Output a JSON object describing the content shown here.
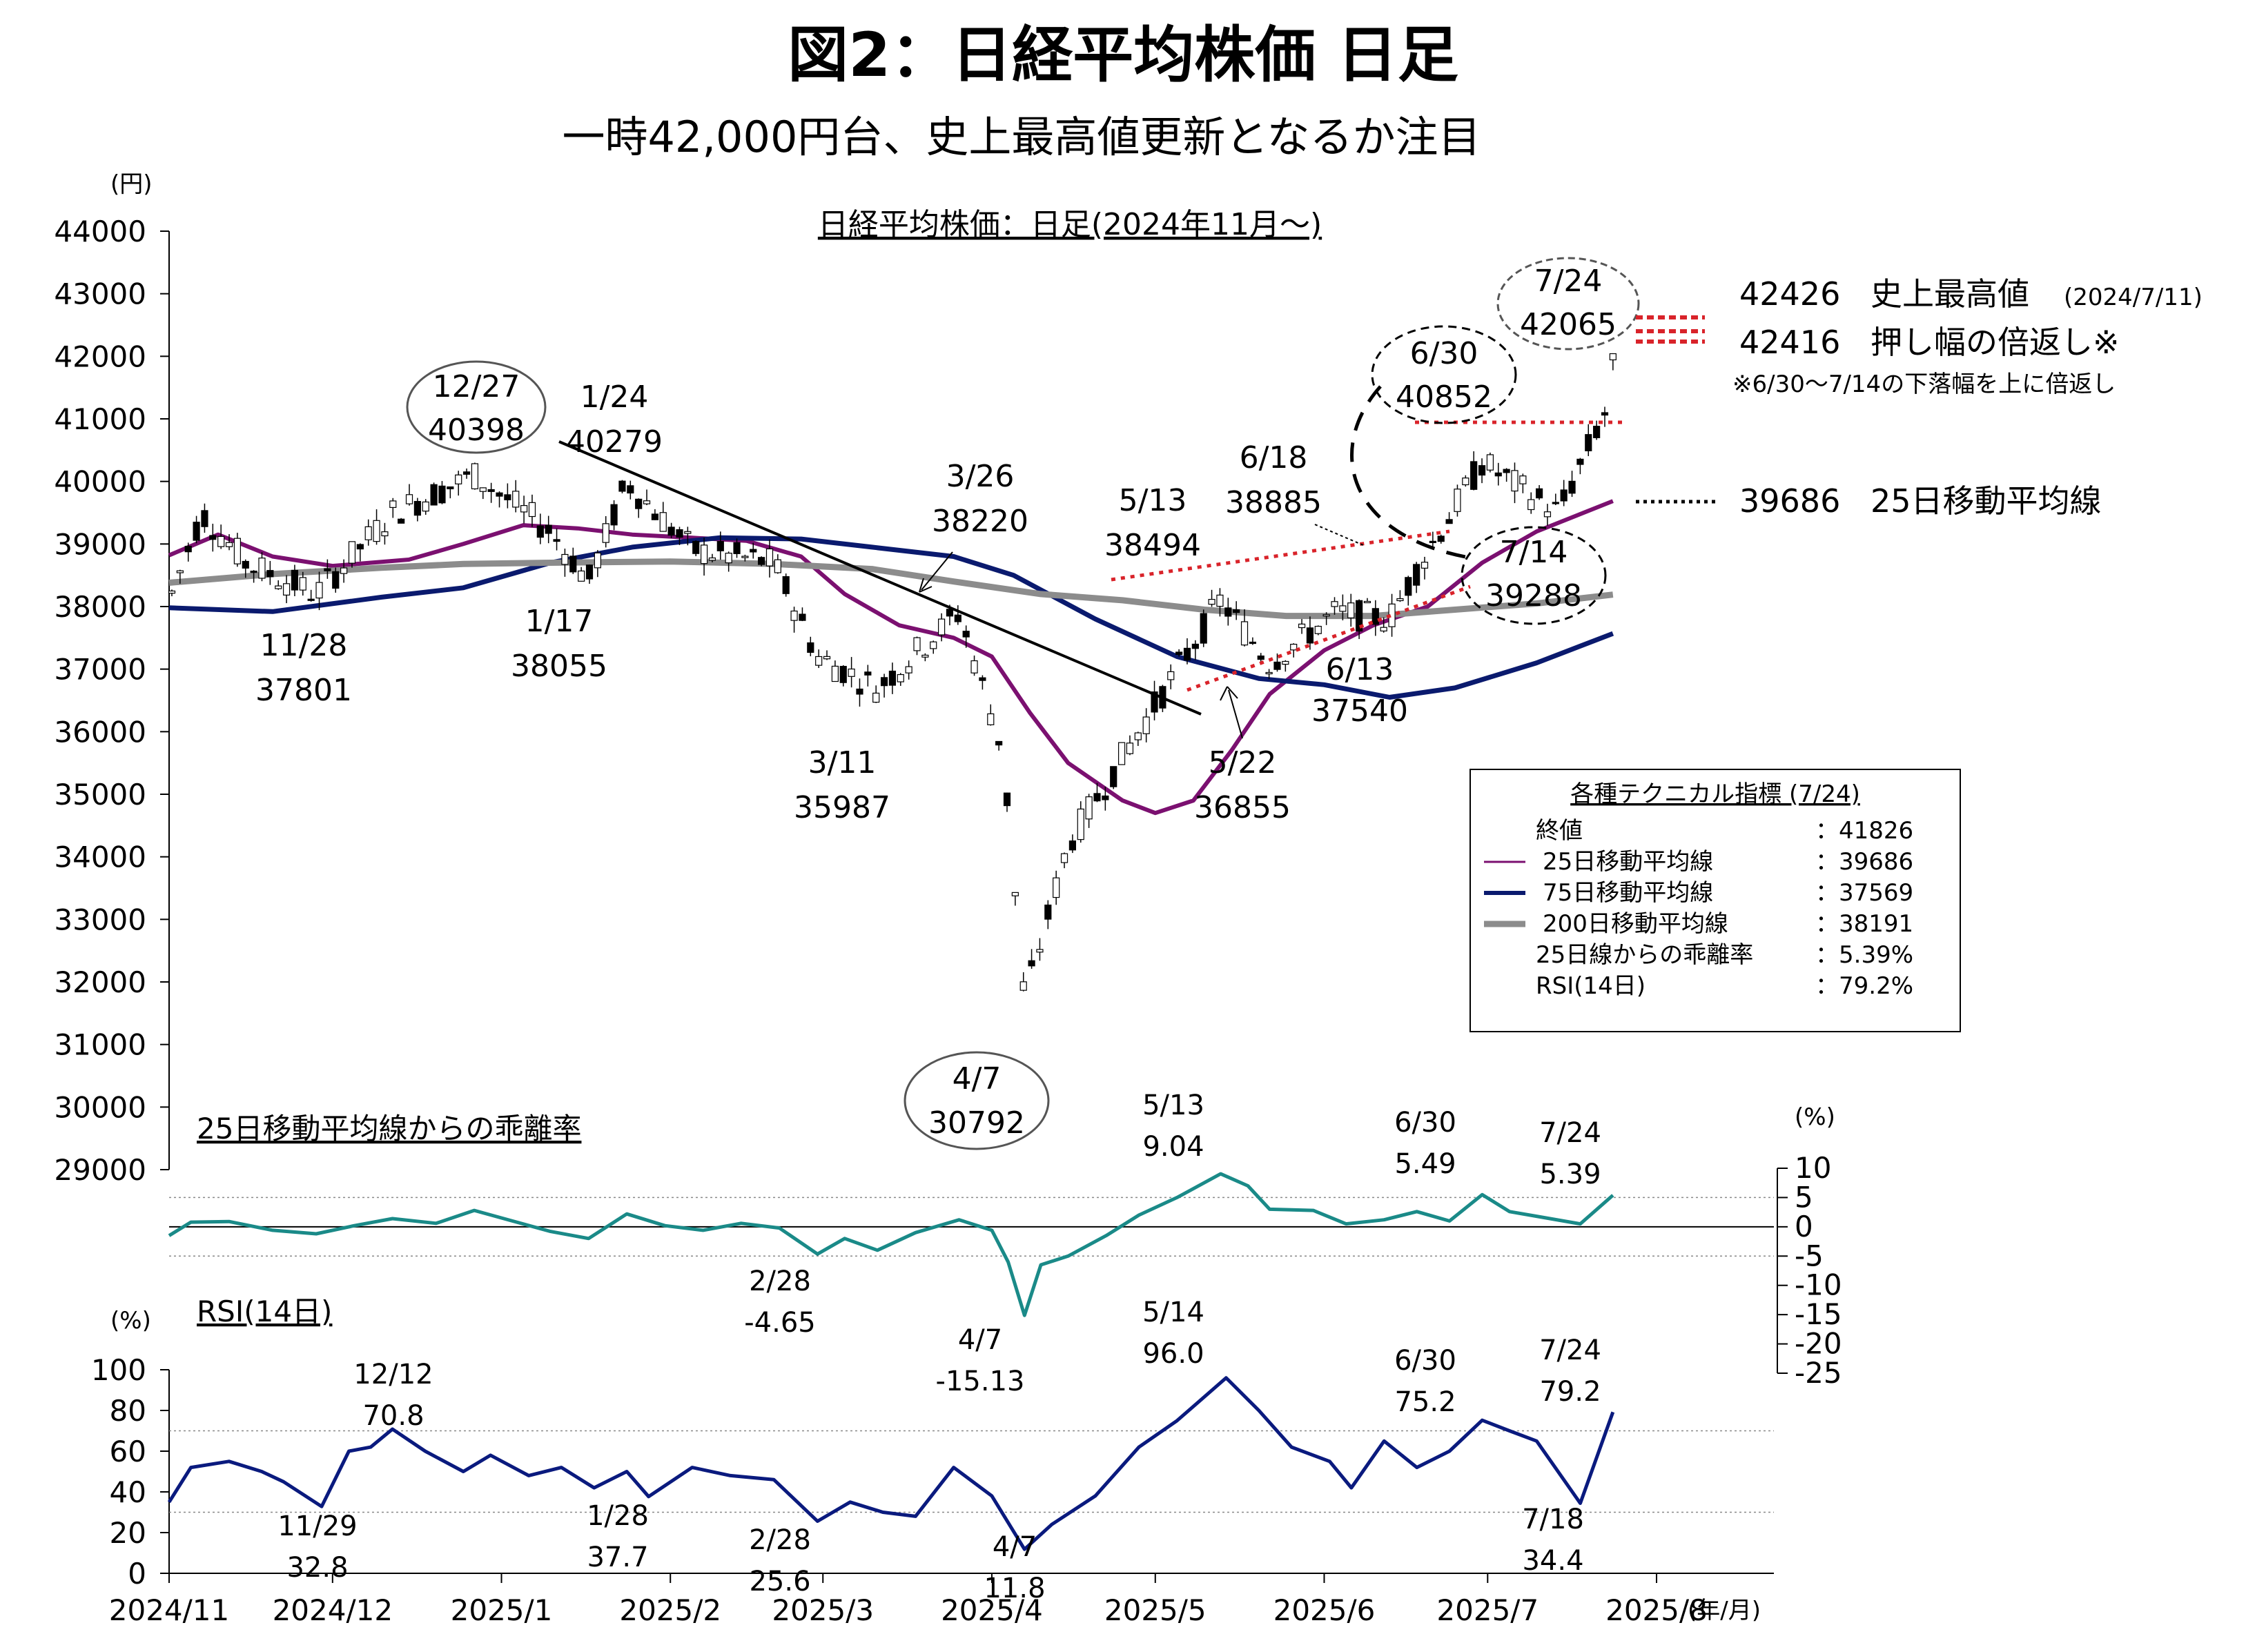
{
  "title": "図2：日経平均株価 日足",
  "subtitle": "一時42,000円台、史上最高値更新となるか注目",
  "chart_data": [
    {
      "type": "candlestick",
      "title": "日経平均株価：日足(2024年11月～)",
      "ylabel": "(円)",
      "ylim": [
        29000,
        44000
      ],
      "yticks": [
        "44000",
        "43000",
        "42000",
        "41000",
        "40000",
        "39000",
        "38000",
        "37000",
        "36000",
        "35000",
        "34000",
        "33000",
        "32000",
        "31000",
        "30000",
        "29000"
      ],
      "series": [
        {
          "name": "25日移動平均線",
          "color": "#7b1070",
          "points": [
            [
              "2024-11-01",
              38820
            ],
            [
              "2024-11-10",
              39150
            ],
            [
              "2024-11-20",
              38800
            ],
            [
              "2024-12-01",
              38650
            ],
            [
              "2024-12-15",
              38750
            ],
            [
              "2024-12-25",
              39000
            ],
            [
              "2025-01-05",
              39300
            ],
            [
              "2025-01-15",
              39250
            ],
            [
              "2025-01-25",
              39150
            ],
            [
              "2025-02-05",
              39100
            ],
            [
              "2025-02-15",
              39050
            ],
            [
              "2025-02-25",
              38800
            ],
            [
              "2025-03-05",
              38200
            ],
            [
              "2025-03-15",
              37700
            ],
            [
              "2025-03-25",
              37500
            ],
            [
              "2025-04-01",
              37200
            ],
            [
              "2025-04-08",
              36300
            ],
            [
              "2025-04-15",
              35500
            ],
            [
              "2025-04-25",
              34900
            ],
            [
              "2025-05-01",
              34700
            ],
            [
              "2025-05-08",
              34900
            ],
            [
              "2025-05-15",
              35700
            ],
            [
              "2025-05-22",
              36600
            ],
            [
              "2025-06-01",
              37300
            ],
            [
              "2025-06-10",
              37700
            ],
            [
              "2025-06-20",
              38000
            ],
            [
              "2025-06-30",
              38700
            ],
            [
              "2025-07-10",
              39200
            ],
            [
              "2025-07-24",
              39686
            ]
          ]
        },
        {
          "name": "75日移動平均線",
          "color": "#0a1a6e",
          "points": [
            [
              "2024-11-01",
              37980
            ],
            [
              "2024-11-20",
              37920
            ],
            [
              "2024-12-10",
              38150
            ],
            [
              "2024-12-25",
              38300
            ],
            [
              "2025-01-10",
              38700
            ],
            [
              "2025-01-25",
              38950
            ],
            [
              "2025-02-10",
              39100
            ],
            [
              "2025-02-25",
              39080
            ],
            [
              "2025-03-10",
              38950
            ],
            [
              "2025-03-25",
              38800
            ],
            [
              "2025-04-05",
              38500
            ],
            [
              "2025-04-20",
              37800
            ],
            [
              "2025-05-05",
              37200
            ],
            [
              "2025-05-20",
              36850
            ],
            [
              "2025-06-01",
              36750
            ],
            [
              "2025-06-13",
              36550
            ],
            [
              "2025-06-25",
              36700
            ],
            [
              "2025-07-10",
              37100
            ],
            [
              "2025-07-24",
              37569
            ]
          ]
        },
        {
          "name": "200日移動平均線",
          "color": "#8c8c8c",
          "points": [
            [
              "2024-11-01",
              38380
            ],
            [
              "2024-11-20",
              38520
            ],
            [
              "2024-12-10",
              38620
            ],
            [
              "2024-12-25",
              38680
            ],
            [
              "2025-01-10",
              38700
            ],
            [
              "2025-02-01",
              38720
            ],
            [
              "2025-02-20",
              38680
            ],
            [
              "2025-03-10",
              38600
            ],
            [
              "2025-03-25",
              38400
            ],
            [
              "2025-04-10",
              38200
            ],
            [
              "2025-04-25",
              38100
            ],
            [
              "2025-05-10",
              37950
            ],
            [
              "2025-05-25",
              37850
            ],
            [
              "2025-06-10",
              37850
            ],
            [
              "2025-06-25",
              37950
            ],
            [
              "2025-07-10",
              38050
            ],
            [
              "2025-07-24",
              38191
            ]
          ]
        }
      ],
      "extra_lines": [
        {
          "name": "42426 史上最高値",
          "y": 42426
        },
        {
          "name": "42416 押し幅の倍返し",
          "y": 42416
        },
        {
          "name": "39686 25日移動平均線",
          "y": 39686
        }
      ],
      "annotations": [
        {
          "date": "11/28",
          "value": "37801"
        },
        {
          "date": "12/27",
          "value": "40398"
        },
        {
          "date": "1/17",
          "value": "38055"
        },
        {
          "date": "1/24",
          "value": "40279"
        },
        {
          "date": "3/11",
          "value": "35987"
        },
        {
          "date": "3/26",
          "value": "38220"
        },
        {
          "date": "4/7",
          "value": "30792"
        },
        {
          "date": "5/13",
          "value": "38494"
        },
        {
          "date": "5/22",
          "value": "36855"
        },
        {
          "date": "6/13",
          "value": "37540"
        },
        {
          "date": "6/18",
          "value": "38885"
        },
        {
          "date": "6/30",
          "value": "40852"
        },
        {
          "date": "7/14",
          "value": "39288"
        },
        {
          "date": "7/24",
          "value": "42065"
        }
      ]
    },
    {
      "type": "line",
      "title": "25日移動平均線からの乖離率",
      "ylabel": "(%)",
      "ylim": [
        -25,
        10
      ],
      "yticks": [
        "10",
        "5",
        "0",
        "-5",
        "-10",
        "-15",
        "-20",
        "-25"
      ],
      "series": [
        {
          "name": "",
          "color": "#1a8a88",
          "points": [
            [
              "2024-11-01",
              -1.5
            ],
            [
              "2024-11-05",
              0.8
            ],
            [
              "2024-11-12",
              0.9
            ],
            [
              "2024-11-20",
              -0.6
            ],
            [
              "2024-11-28",
              -1.2
            ],
            [
              "2024-12-05",
              0.2
            ],
            [
              "2024-12-12",
              1.4
            ],
            [
              "2024-12-20",
              0.6
            ],
            [
              "2024-12-27",
              2.8
            ],
            [
              "2025-01-03",
              1.0
            ],
            [
              "2025-01-10",
              -0.8
            ],
            [
              "2025-01-17",
              -2.0
            ],
            [
              "2025-01-24",
              2.2
            ],
            [
              "2025-01-31",
              0.2
            ],
            [
              "2025-02-07",
              -0.6
            ],
            [
              "2025-02-14",
              0.6
            ],
            [
              "2025-02-21",
              -0.2
            ],
            [
              "2025-02-28",
              -4.65
            ],
            [
              "2025-03-05",
              -2.0
            ],
            [
              "2025-03-11",
              -4.0
            ],
            [
              "2025-03-18",
              -1.0
            ],
            [
              "2025-03-26",
              1.2
            ],
            [
              "2025-04-01",
              -0.6
            ],
            [
              "2025-04-04",
              -6.0
            ],
            [
              "2025-04-07",
              -15.13
            ],
            [
              "2025-04-10",
              -6.5
            ],
            [
              "2025-04-15",
              -5.0
            ],
            [
              "2025-04-22",
              -1.5
            ],
            [
              "2025-04-28",
              2.0
            ],
            [
              "2025-05-05",
              5.0
            ],
            [
              "2025-05-13",
              9.04
            ],
            [
              "2025-05-18",
              7.0
            ],
            [
              "2025-05-22",
              3.0
            ],
            [
              "2025-05-30",
              2.8
            ],
            [
              "2025-06-05",
              0.5
            ],
            [
              "2025-06-12",
              1.2
            ],
            [
              "2025-06-18",
              2.6
            ],
            [
              "2025-06-24",
              1.0
            ],
            [
              "2025-06-30",
              5.49
            ],
            [
              "2025-07-05",
              2.6
            ],
            [
              "2025-07-10",
              1.8
            ],
            [
              "2025-07-18",
              0.5
            ],
            [
              "2025-07-24",
              5.39
            ]
          ]
        }
      ],
      "annotations": [
        {
          "date": "5/13",
          "value": "9.04"
        },
        {
          "date": "6/30",
          "value": "5.49"
        },
        {
          "date": "7/24",
          "value": "5.39"
        },
        {
          "date": "2/28",
          "value": "-4.65"
        },
        {
          "date": "4/7",
          "value": "-15.13"
        }
      ]
    },
    {
      "type": "line",
      "title": "RSI(14日)",
      "ylabel": "(%)",
      "ylim": [
        0,
        100
      ],
      "yticks": [
        "100",
        "80",
        "60",
        "40",
        "20",
        "0"
      ],
      "xlabel": "(年/月)",
      "xticks": [
        "2024/11",
        "2024/12",
        "2025/1",
        "2025/2",
        "2025/3",
        "2025/4",
        "2025/5",
        "2025/6",
        "2025/7",
        "2025/8"
      ],
      "series": [
        {
          "name": "",
          "color": "#0a1a7e",
          "points": [
            [
              "2024-11-01",
              35
            ],
            [
              "2024-11-05",
              52
            ],
            [
              "2024-11-12",
              55
            ],
            [
              "2024-11-18",
              50
            ],
            [
              "2024-11-22",
              45
            ],
            [
              "2024-11-29",
              32.8
            ],
            [
              "2024-12-04",
              60
            ],
            [
              "2024-12-08",
              62
            ],
            [
              "2024-12-12",
              70.8
            ],
            [
              "2024-12-18",
              60
            ],
            [
              "2024-12-25",
              50
            ],
            [
              "2024-12-30",
              58
            ],
            [
              "2025-01-06",
              48
            ],
            [
              "2025-01-12",
              52
            ],
            [
              "2025-01-18",
              42
            ],
            [
              "2025-01-24",
              50
            ],
            [
              "2025-01-28",
              37.7
            ],
            [
              "2025-02-05",
              52
            ],
            [
              "2025-02-12",
              48
            ],
            [
              "2025-02-20",
              46
            ],
            [
              "2025-02-28",
              25.6
            ],
            [
              "2025-03-06",
              35
            ],
            [
              "2025-03-12",
              30
            ],
            [
              "2025-03-18",
              28
            ],
            [
              "2025-03-25",
              52
            ],
            [
              "2025-04-01",
              38
            ],
            [
              "2025-04-07",
              11.8
            ],
            [
              "2025-04-12",
              24
            ],
            [
              "2025-04-20",
              38
            ],
            [
              "2025-04-28",
              62
            ],
            [
              "2025-05-05",
              75
            ],
            [
              "2025-05-14",
              96.0
            ],
            [
              "2025-05-20",
              80
            ],
            [
              "2025-05-26",
              62
            ],
            [
              "2025-06-02",
              55
            ],
            [
              "2025-06-06",
              42
            ],
            [
              "2025-06-12",
              65
            ],
            [
              "2025-06-18",
              52
            ],
            [
              "2025-06-24",
              60
            ],
            [
              "2025-06-30",
              75.2
            ],
            [
              "2025-07-05",
              70
            ],
            [
              "2025-07-10",
              65
            ],
            [
              "2025-07-18",
              34.4
            ],
            [
              "2025-07-24",
              79.2
            ]
          ]
        }
      ],
      "annotations": [
        {
          "date": "12/12",
          "value": "70.8"
        },
        {
          "date": "11/29",
          "value": "32.8"
        },
        {
          "date": "1/28",
          "value": "37.7"
        },
        {
          "date": "2/28",
          "value": "25.6"
        },
        {
          "date": "4/7",
          "value": "11.8"
        },
        {
          "date": "5/14",
          "value": "96.0"
        },
        {
          "date": "6/30",
          "value": "75.2"
        },
        {
          "date": "7/24",
          "value": "79.2"
        },
        {
          "date": "7/18",
          "value": "34.4"
        }
      ]
    }
  ],
  "right_legend": {
    "high": {
      "value": "42426",
      "label": "史上最高値",
      "date": "(2024/7/11)"
    },
    "double": {
      "value": "42416",
      "label": "押し幅の倍返し※"
    },
    "note": "※6/30～7/14の下落幅を上に倍返し",
    "ma25": {
      "value": "39686",
      "label": "25日移動平均線"
    }
  },
  "indicators": {
    "title": "各種テクニカル指標 (7/24)",
    "rows": [
      {
        "label": "終値",
        "value": "：41826"
      },
      {
        "label": "25日移動平均線",
        "value": "：39686"
      },
      {
        "label": "75日移動平均線",
        "value": "：37569"
      },
      {
        "label": "200日移動平均線",
        "value": "：38191"
      },
      {
        "label": "25日線からの乖離率",
        "value": "：5.39%"
      },
      {
        "label": "RSI(14日)",
        "value": "：79.2%"
      }
    ]
  }
}
